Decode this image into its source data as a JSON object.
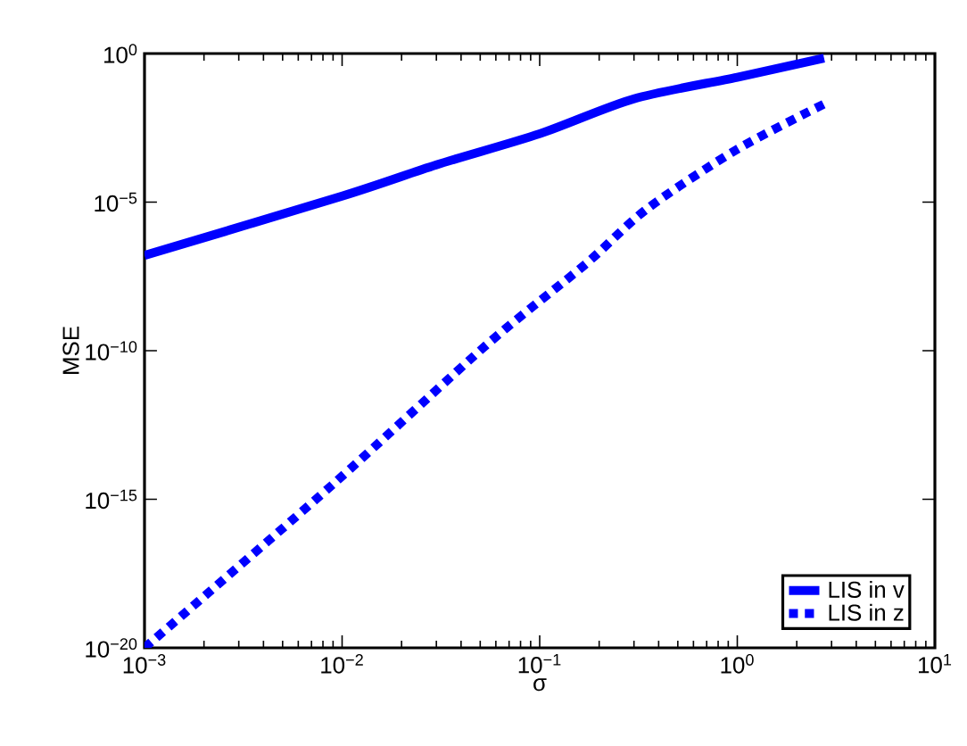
{
  "chart_data": {
    "type": "line",
    "xlabel": "σ",
    "ylabel": "MSE",
    "log": "xy",
    "xlim": [
      0.001,
      10
    ],
    "ylim": [
      1e-20,
      1
    ],
    "xticks": [
      {
        "value": 0.001,
        "label": "10$^{−3}$"
      },
      {
        "value": 0.01,
        "label": "10$^{−2}$"
      },
      {
        "value": 0.1,
        "label": "10$^{−1}$"
      },
      {
        "value": 1,
        "label": "10$^{0}$"
      },
      {
        "value": 10,
        "label": "10$^{1}$"
      }
    ],
    "yticks": [
      {
        "value": 1e-20,
        "label": "10$^{−20}$"
      },
      {
        "value": 1e-15,
        "label": "10$^{−15}$"
      },
      {
        "value": 1e-10,
        "label": "10$^{−10}$"
      },
      {
        "value": 1e-05,
        "label": "10$^{−5}$"
      },
      {
        "value": 1,
        "label": "10$^{0}$"
      }
    ],
    "legend": "bottom right",
    "grid": false,
    "series": [
      {
        "name": "LIS in v",
        "color": "#0000ff",
        "line_style": "solid",
        "x": [
          0.001,
          0.01,
          0.03,
          0.1,
          0.3,
          1,
          2.75
        ],
        "values": [
          1.6e-07,
          1.6e-05,
          0.00018,
          0.002,
          0.03,
          0.16,
          0.7
        ]
      },
      {
        "name": "LIS in z",
        "color": "#0000ff",
        "line_style": "dashed",
        "x": [
          0.001,
          0.0089,
          0.054,
          0.17,
          0.35,
          1,
          2.75
        ],
        "values": [
          1e-20,
          3e-15,
          1.6e-10,
          8e-08,
          6e-06,
          0.0006,
          0.02
        ]
      }
    ]
  }
}
